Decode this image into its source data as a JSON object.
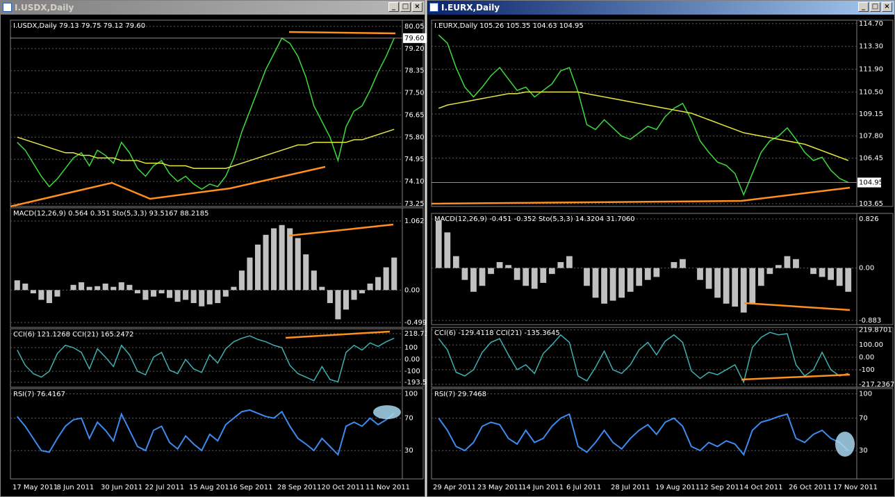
{
  "windows": [
    {
      "title": "I.USDX,Daily",
      "panes": [
        {
          "label": "I.USDX,Daily  79.13 79.75 79.12 79.60",
          "ylim": [
            73.14,
            80.29
          ],
          "ticks": [
            80.05,
            {
              "value": 79.2,
              "label": "79.20"
            },
            78.35,
            {
              "value": 77.5,
              "label": "77.50"
            },
            76.65,
            {
              "value": 75.8,
              "label": "75.80"
            },
            74.95,
            {
              "value": 74.1,
              "label": "74.10"
            },
            73.25
          ],
          "current": {
            "value": 79.6,
            "label": "79.60"
          },
          "series": [
            {
              "color": "#3cdc3c",
              "values": [
                75.6,
                75.3,
                74.8,
                74.3,
                73.9,
                74.2,
                74.6,
                75.0,
                75.2,
                74.7,
                75.3,
                75.1,
                74.8,
                75.6,
                75.2,
                74.6,
                74.3,
                74.7,
                74.9,
                74.4,
                74.1,
                74.3,
                74.0,
                73.8,
                74.0,
                73.9,
                74.3,
                75.0,
                76.0,
                76.8,
                77.6,
                78.4,
                79.0,
                79.6,
                79.4,
                78.9,
                78.1,
                77.0,
                76.4,
                75.8,
                74.9,
                76.2,
                76.8,
                77.0,
                77.6,
                78.3,
                78.9,
                79.6
              ]
            },
            {
              "color": "#e8e840",
              "values": [
                75.8,
                75.7,
                75.6,
                75.5,
                75.4,
                75.3,
                75.2,
                75.2,
                75.1,
                75.1,
                75.0,
                75.0,
                75.0,
                74.9,
                74.9,
                74.9,
                74.8,
                74.8,
                74.8,
                74.7,
                74.7,
                74.7,
                74.6,
                74.6,
                74.6,
                74.6,
                74.6,
                74.7,
                74.8,
                74.9,
                75.0,
                75.1,
                75.2,
                75.3,
                75.4,
                75.5,
                75.5,
                75.6,
                75.6,
                75.6,
                75.6,
                75.6,
                75.7,
                75.7,
                75.8,
                75.9,
                76.0,
                76.1
              ]
            }
          ]
        },
        {
          "label": "MACD(12,26,9) 0.564 0.351  Sto(5,3,3) 93.5167 88.2185",
          "ylim": [
            -0.574,
            1.265
          ],
          "ticks": [
            1.062,
            {
              "value": 0,
              "label": "0.00"
            },
            -0.499
          ],
          "series": [
            {
              "color": "#c0c0c0",
              "values": [
                0.15,
                0.1,
                -0.05,
                -0.15,
                -0.2,
                -0.1,
                0.0,
                0.08,
                0.12,
                0.05,
                0.06,
                0.1,
                0.05,
                0.12,
                0.08,
                -0.05,
                -0.15,
                -0.1,
                -0.05,
                -0.12,
                -0.18,
                -0.15,
                -0.2,
                -0.25,
                -0.22,
                -0.2,
                -0.1,
                0.05,
                0.3,
                0.5,
                0.7,
                0.85,
                0.95,
                1.0,
                0.95,
                0.8,
                0.55,
                0.3,
                0.05,
                -0.2,
                -0.45,
                -0.3,
                -0.15,
                -0.05,
                0.1,
                0.2,
                0.35,
                0.5
              ]
            }
          ]
        },
        {
          "label": "CCI(6) 121.1268  CCI(21) 165.2472",
          "ylim": [
            -235,
            260
          ],
          "ticks": [
            218.739,
            100,
            {
              "value": 0,
              "label": "0.00"
            },
            -100,
            -193.529
          ],
          "series": [
            {
              "color": "#40b0b0",
              "values": [
                80,
                -50,
                -120,
                -150,
                -100,
                50,
                120,
                100,
                60,
                -80,
                90,
                20,
                -60,
                120,
                40,
                -100,
                -130,
                20,
                60,
                -90,
                -120,
                0,
                -80,
                -110,
                40,
                -30,
                90,
                150,
                180,
                200,
                170,
                150,
                120,
                100,
                -50,
                -120,
                -150,
                -180,
                -60,
                -170,
                -190,
                60,
                120,
                80,
                140,
                110,
                150,
                180
              ]
            }
          ]
        },
        {
          "label": "RSI(7) 76.4167",
          "ylim": [
            -5,
            106.5
          ],
          "ticks": [
            100,
            70,
            30
          ],
          "series": [
            {
              "color": "#3c8cf0",
              "values": [
                72,
                60,
                45,
                30,
                28,
                45,
                60,
                68,
                70,
                45,
                65,
                55,
                42,
                75,
                55,
                35,
                30,
                55,
                60,
                40,
                32,
                48,
                38,
                30,
                50,
                42,
                62,
                70,
                78,
                80,
                76,
                72,
                70,
                78,
                60,
                45,
                38,
                30,
                45,
                35,
                25,
                60,
                65,
                60,
                70,
                62,
                68,
                76
              ]
            }
          ]
        }
      ],
      "dates": [
        "17 May 2011",
        "8 Jun 2011",
        "30 Jun 2011",
        "22 Jul 2011",
        "15 Aug 2011",
        "6 Sep 2011",
        "28 Sep 2011",
        "20 Oct 2011",
        "11 Nov 2011"
      ]
    },
    {
      "title": "I.EURX,Daily",
      "panes": [
        {
          "label": "I.EURX,Daily  105.26 105.35 104.63 104.95",
          "ylim": [
            103.48,
            114.91
          ],
          "ticks": [
            {
              "value": 114.7,
              "label": "114.70"
            },
            {
              "value": 113.3,
              "label": "113.30"
            },
            {
              "value": 111.9,
              "label": "111.90"
            },
            {
              "value": 110.5,
              "label": "110.50"
            },
            109.15,
            {
              "value": 107.8,
              "label": "107.80"
            },
            106.45,
            103.65
          ],
          "current": {
            "value": 104.95,
            "label": "104.95"
          },
          "series": [
            {
              "color": "#3cdc3c",
              "values": [
                114.0,
                113.5,
                112.0,
                110.8,
                110.2,
                110.8,
                111.5,
                112.0,
                111.3,
                110.6,
                110.8,
                110.2,
                110.6,
                111.0,
                111.8,
                112.0,
                110.5,
                108.5,
                108.2,
                108.8,
                108.3,
                107.8,
                107.6,
                108.0,
                108.4,
                108.2,
                109.0,
                109.5,
                109.8,
                108.8,
                107.5,
                106.8,
                106.2,
                106.0,
                105.5,
                104.2,
                105.5,
                106.8,
                107.5,
                107.8,
                108.3,
                107.6,
                106.8,
                106.3,
                106.5,
                105.7,
                105.2,
                104.95
              ]
            },
            {
              "color": "#e8e840",
              "values": [
                109.5,
                109.7,
                109.8,
                109.9,
                110.0,
                110.1,
                110.2,
                110.3,
                110.4,
                110.4,
                110.5,
                110.5,
                110.5,
                110.5,
                110.5,
                110.5,
                110.5,
                110.4,
                110.3,
                110.2,
                110.1,
                110.0,
                109.9,
                109.8,
                109.7,
                109.6,
                109.5,
                109.4,
                109.3,
                109.2,
                109.0,
                108.8,
                108.6,
                108.4,
                108.2,
                108.0,
                107.9,
                107.8,
                107.7,
                107.6,
                107.5,
                107.4,
                107.3,
                107.1,
                106.9,
                106.7,
                106.5,
                106.3
              ]
            }
          ]
        },
        {
          "label": "MACD(12,26,9) -0.451 -0.352  Sto(5,3,3) 14.3204 31.7060",
          "ylim": [
            -0.953,
            0.92
          ],
          "ticks": [
            0.826,
            {
              "value": 0,
              "label": "0.00"
            },
            -0.883
          ],
          "series": [
            {
              "color": "#c0c0c0",
              "values": [
                0.8,
                0.6,
                0.2,
                -0.2,
                -0.4,
                -0.3,
                -0.1,
                0.1,
                0.05,
                -0.2,
                -0.3,
                -0.35,
                -0.25,
                -0.1,
                0.1,
                0.2,
                0.0,
                -0.3,
                -0.5,
                -0.6,
                -0.55,
                -0.5,
                -0.4,
                -0.3,
                -0.2,
                -0.15,
                0.0,
                0.1,
                0.15,
                0.0,
                -0.2,
                -0.35,
                -0.5,
                -0.6,
                -0.65,
                -0.75,
                -0.6,
                -0.3,
                -0.1,
                0.05,
                0.2,
                0.15,
                0.0,
                -0.1,
                -0.15,
                -0.2,
                -0.3,
                -0.4
              ]
            }
          ]
        },
        {
          "label": "CCI(6) -129.4118  CCI(21) -135.3645",
          "ylim": [
            -240,
            240
          ],
          "ticks": [
            219.8701,
            {
              "value": 100,
              "label": "100.00"
            },
            {
              "value": 0,
              "label": "0.00"
            },
            -100,
            -217.2367
          ],
          "series": [
            {
              "color": "#40b0b0",
              "values": [
                150,
                60,
                -120,
                -150,
                -100,
                40,
                120,
                150,
                20,
                -100,
                -60,
                -130,
                30,
                100,
                180,
                120,
                -150,
                -190,
                -80,
                50,
                -100,
                -130,
                -60,
                60,
                120,
                20,
                130,
                180,
                120,
                -110,
                -170,
                -120,
                -140,
                -100,
                -60,
                -200,
                80,
                160,
                200,
                180,
                190,
                -60,
                -150,
                -100,
                40,
                -100,
                -150,
                -129
              ]
            }
          ]
        },
        {
          "label": "RSI(7) 29.7468",
          "ylim": [
            -5,
            106.5
          ],
          "ticks": [
            100,
            70,
            30
          ],
          "series": [
            {
              "color": "#3c8cf0",
              "values": [
                70,
                55,
                35,
                30,
                40,
                60,
                65,
                62,
                45,
                38,
                55,
                40,
                45,
                60,
                70,
                75,
                35,
                28,
                40,
                55,
                40,
                32,
                45,
                55,
                62,
                50,
                65,
                70,
                60,
                35,
                30,
                40,
                35,
                42,
                38,
                25,
                55,
                65,
                68,
                72,
                75,
                45,
                40,
                50,
                55,
                45,
                40,
                30
              ]
            }
          ]
        }
      ],
      "dates": [
        "29 Apr 2011",
        "23 May 2011",
        "14 Jun 2011",
        "6 Jul 2011",
        "28 Jul 2011",
        "19 Aug 2011",
        "12 Sep 2011",
        "4 Oct 2011",
        "26 Oct 2011",
        "17 Nov 2011"
      ]
    }
  ]
}
